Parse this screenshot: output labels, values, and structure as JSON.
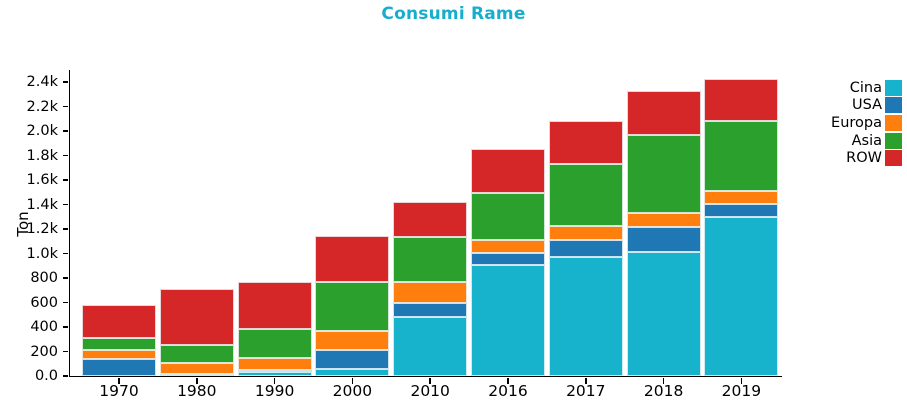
{
  "chart_data": {
    "type": "bar",
    "stacked": true,
    "title": "Consumi Rame",
    "title_color": "#17aece",
    "xlabel": "",
    "ylabel": "Ton",
    "categories": [
      "1970",
      "1980",
      "1990",
      "2000",
      "2010",
      "2016",
      "2017",
      "2018",
      "2019"
    ],
    "series": [
      {
        "name": "Cina",
        "color": "#17b2cc",
        "values": [
          0,
          20,
          30,
          60,
          480,
          905,
          970,
          1010,
          1300
        ]
      },
      {
        "name": "USA",
        "color": "#1f77b4",
        "values": [
          140,
          0,
          20,
          150,
          120,
          100,
          140,
          205,
          105
        ]
      },
      {
        "name": "Europa",
        "color": "#ff7f0e",
        "values": [
          70,
          90,
          100,
          155,
          165,
          105,
          115,
          120,
          105
        ]
      },
      {
        "name": "Asia",
        "color": "#2ca02c",
        "values": [
          100,
          140,
          235,
          400,
          370,
          385,
          505,
          635,
          575
        ]
      },
      {
        "name": "ROW",
        "color": "#d62728",
        "values": [
          270,
          460,
          385,
          375,
          285,
          360,
          355,
          360,
          340
        ]
      }
    ],
    "totals": [
      580,
      710,
      770,
      1140,
      1420,
      1855,
      2085,
      2330,
      2425
    ],
    "ylim": [
      0,
      2500
    ],
    "ytick_values": [
      0,
      200,
      400,
      600,
      800,
      1000,
      1200,
      1400,
      1600,
      1800,
      2000,
      2200,
      2400
    ],
    "ytick_labels": [
      "0.0",
      "200",
      "400",
      "600",
      "800",
      "1.0k",
      "1.2k",
      "1.4k",
      "1.6k",
      "1.8k",
      "2.0k",
      "2.2k",
      "2.4k"
    ],
    "legend_position": "right",
    "legend_entries": [
      "Cina",
      "USA",
      "Europa",
      "Asia",
      "ROW"
    ],
    "grid": false
  }
}
